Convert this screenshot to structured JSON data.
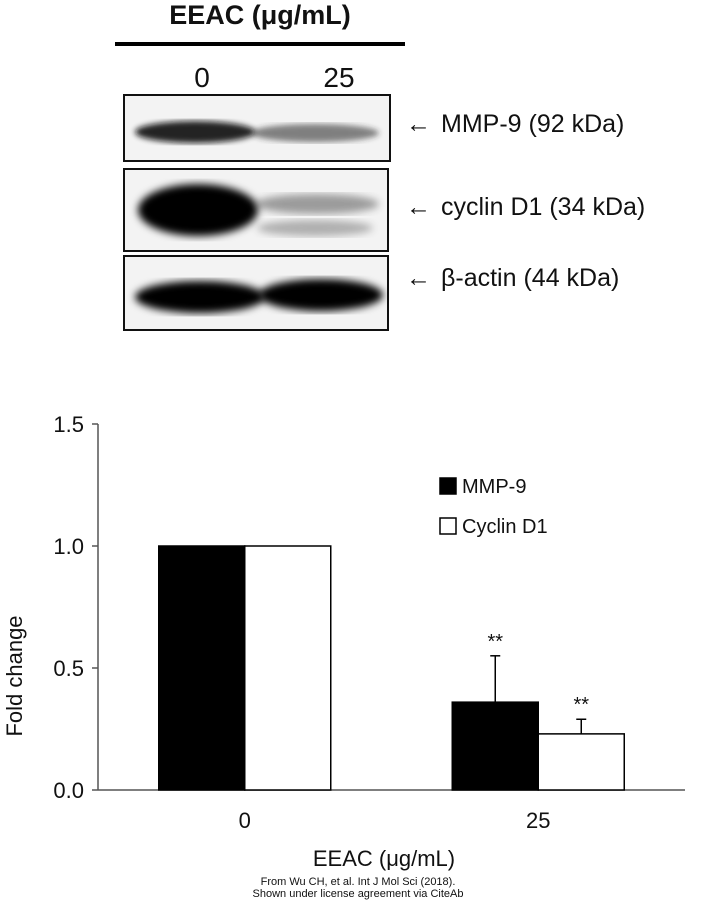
{
  "blot": {
    "treatment_label": "EEAC (μg/mL)",
    "lanes": [
      "0",
      "25"
    ],
    "bands": [
      {
        "label": "MMP-9 (92 kDa)",
        "intensity": [
          1.0,
          0.37
        ]
      },
      {
        "label": "cyclin D1 (34 kDa)",
        "intensity": [
          1.0,
          0.23
        ]
      },
      {
        "label": "β-actin (44 kDa)",
        "intensity": [
          1.0,
          1.0
        ]
      }
    ],
    "arrow_glyph": "←"
  },
  "chart_data": {
    "type": "bar",
    "categories": [
      "0",
      "25"
    ],
    "series": [
      {
        "name": "MMP-9",
        "values": [
          1.0,
          0.36
        ],
        "errors": [
          0,
          0.19
        ],
        "significance": [
          "",
          "**"
        ],
        "color": "#000000"
      },
      {
        "name": "Cyclin D1",
        "values": [
          1.0,
          0.23
        ],
        "errors": [
          0,
          0.06
        ],
        "significance": [
          "",
          "**"
        ],
        "color": "#ffffff"
      }
    ],
    "title": "",
    "xlabel": "EEAC (μg/mL)",
    "ylabel": "Fold change",
    "ylim": [
      0,
      1.5
    ],
    "yticks": [
      "0.0",
      "0.5",
      "1.0",
      "1.5"
    ],
    "grid": false,
    "legend_position": "top-right"
  },
  "citation": {
    "line1": "From Wu CH, et al. Int J Mol Sci (2018).",
    "line2": "Shown under license agreement via CiteAb"
  }
}
